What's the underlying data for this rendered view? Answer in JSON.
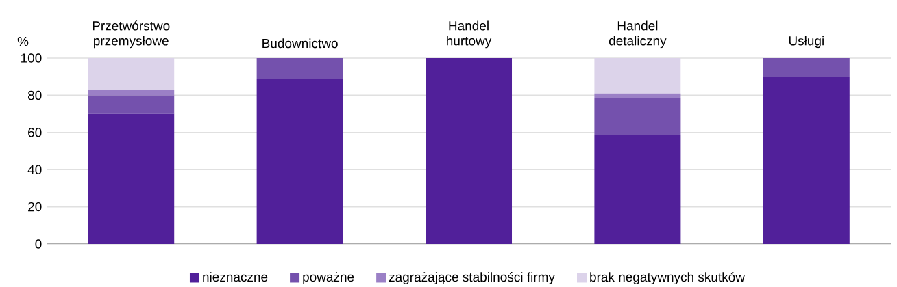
{
  "chart_data": {
    "type": "bar",
    "stacked": true,
    "ylabel": "%",
    "categories": [
      "Przetwórstwo przemysłowe",
      "Budownictwo",
      "Handel hurtowy",
      "Handel detaliczny",
      "Usługi"
    ],
    "series": [
      {
        "name": "nieznaczne",
        "color": "#51209a",
        "values": [
          70,
          89,
          100,
          58.5,
          90
        ]
      },
      {
        "name": "poważne",
        "color": "#7451ad",
        "values": [
          10,
          11,
          0,
          20,
          10
        ]
      },
      {
        "name": "zagrażające stabilności firmy",
        "color": "#9b80c6",
        "values": [
          3,
          0,
          0,
          2.5,
          0
        ]
      },
      {
        "name": "brak negatywnych skutków",
        "color": "#dcd3ea",
        "values": [
          17,
          0,
          0,
          19,
          0
        ]
      }
    ],
    "ylim": [
      0,
      100
    ],
    "yticks": [
      0,
      20,
      40,
      60,
      80,
      100
    ],
    "grid": "y",
    "legend": "bottom"
  }
}
